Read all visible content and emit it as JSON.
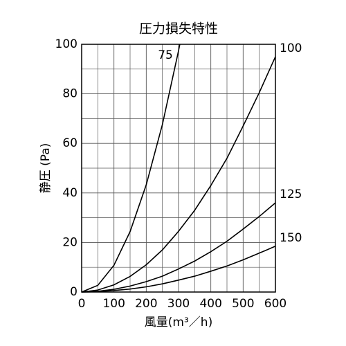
{
  "chart_data": {
    "type": "line",
    "title": "圧力損失特性",
    "x_label": "風量(m³／h)",
    "y_label": "静圧 (Pa)",
    "xlim": [
      0,
      600
    ],
    "ylim": [
      0,
      100
    ],
    "xticks": [
      0,
      100,
      200,
      300,
      400,
      500,
      600
    ],
    "yticks": [
      0,
      20,
      40,
      60,
      80,
      100
    ],
    "x_minor_grid": [
      50,
      150,
      250,
      350,
      450,
      550
    ],
    "y_minor_grid": [
      10,
      30,
      50,
      70,
      90
    ],
    "grid": true,
    "series": [
      {
        "name": "75",
        "color": "#000000",
        "x": [
          0,
          50,
          100,
          150,
          200,
          250,
          300,
          304
        ],
        "values": [
          0,
          2.7,
          10.8,
          24.4,
          43.3,
          67.6,
          97.4,
          100
        ]
      },
      {
        "name": "100",
        "color": "#000000",
        "x": [
          0,
          50,
          100,
          150,
          200,
          250,
          300,
          350,
          400,
          450,
          500,
          550,
          600
        ],
        "values": [
          0,
          0.8,
          2.9,
          6.3,
          11,
          17,
          24.5,
          33,
          43,
          54,
          67,
          80.5,
          95
        ]
      },
      {
        "name": "125",
        "color": "#000000",
        "x": [
          0,
          50,
          100,
          150,
          200,
          250,
          300,
          350,
          400,
          450,
          500,
          550,
          600
        ],
        "values": [
          0,
          0.3,
          1.1,
          2.4,
          4.2,
          6.4,
          9.3,
          12.5,
          16.3,
          20.5,
          25.4,
          30.5,
          36
        ]
      },
      {
        "name": "150",
        "color": "#000000",
        "x": [
          0,
          50,
          100,
          150,
          200,
          250,
          300,
          350,
          400,
          450,
          500,
          550,
          600
        ],
        "values": [
          0,
          0.15,
          0.6,
          1.2,
          2.1,
          3.3,
          4.8,
          6.4,
          8.4,
          10.5,
          13,
          15.7,
          18.5
        ]
      }
    ]
  }
}
